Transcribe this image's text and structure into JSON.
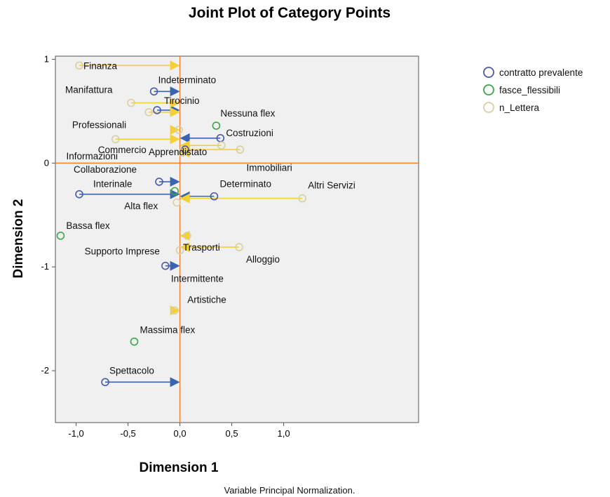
{
  "chart_data": {
    "type": "scatter",
    "title": "Joint Plot of Category Points",
    "xlabel": "Dimension 1",
    "ylabel": "Dimension 2",
    "footnote": "Variable Principal Normalization.",
    "xlim": [
      -1.2,
      2.3
    ],
    "ylim": [
      -2.5,
      1.03
    ],
    "xticks": [
      {
        "v": -1,
        "label": "-1,0"
      },
      {
        "v": -0.5,
        "label": "-0,5"
      },
      {
        "v": 0,
        "label": "0,0"
      },
      {
        "v": 0.5,
        "label": "0,5"
      },
      {
        "v": 1,
        "label": "1,0"
      }
    ],
    "yticks": [
      {
        "v": 1,
        "label": "1"
      },
      {
        "v": 0,
        "label": "0"
      },
      {
        "v": -1,
        "label": "-1"
      },
      {
        "v": -2,
        "label": "-2"
      }
    ],
    "reference_lines": {
      "x": 0,
      "y": 0,
      "color": "#f08030"
    },
    "grid": false,
    "legend_position": "top-right",
    "series": [
      {
        "name": "contratto prevalente",
        "color": "#4a5aa8",
        "arrow_color": "#3a64b0"
      },
      {
        "name": "fasce_flessibili",
        "color": "#3aa84a",
        "arrow_color": "#3aa84a"
      },
      {
        "name": "n_Lettera",
        "color": "#d8d0a0",
        "arrow_color": "#f5d035"
      }
    ],
    "points": [
      {
        "series": 0,
        "label": "Indeterminato",
        "x": -0.25,
        "y": 0.69,
        "px": 0.0,
        "py": 0.69
      },
      {
        "series": 0,
        "label": "Tirocinio",
        "x": -0.22,
        "y": 0.51,
        "px": 0.0,
        "py": 0.51
      },
      {
        "series": 0,
        "label": "Costruzioni",
        "x": 0.39,
        "y": 0.24,
        "px": 0.0,
        "py": 0.24
      },
      {
        "series": 0,
        "label": "Apprendistato",
        "x": 0.05,
        "y": 0.13,
        "px": 0.0,
        "py": 0.13
      },
      {
        "series": 0,
        "label": "Collaborazione",
        "x": -0.2,
        "y": -0.18,
        "px": 0.0,
        "py": -0.18
      },
      {
        "series": 0,
        "label": "Interinale",
        "x": -0.97,
        "y": -0.3,
        "px": 0.0,
        "py": -0.3
      },
      {
        "series": 0,
        "label": "Determinato",
        "x": 0.33,
        "y": -0.32,
        "px": 0.0,
        "py": -0.32
      },
      {
        "series": 0,
        "label": "Intermittente",
        "x": -0.14,
        "y": -0.99,
        "px": 0.0,
        "py": -0.99
      },
      {
        "series": 0,
        "label": "Spettacolo",
        "x": -0.72,
        "y": -2.11,
        "px": 0.0,
        "py": -2.11
      },
      {
        "series": 1,
        "label": "Nessuna flex",
        "x": 0.35,
        "y": 0.36,
        "px": 0.35,
        "py": 0.36
      },
      {
        "series": 1,
        "label": "Alta flex",
        "x": -0.05,
        "y": -0.27,
        "px": -0.05,
        "py": -0.27
      },
      {
        "series": 1,
        "label": "Bassa flex",
        "x": -1.15,
        "y": -0.7,
        "px": -1.15,
        "py": -0.7
      },
      {
        "series": 1,
        "label": "Massima flex",
        "x": -0.44,
        "y": -1.72,
        "px": -0.44,
        "py": -1.72
      },
      {
        "series": 2,
        "label": "Finanza",
        "x": -0.97,
        "y": 0.94,
        "px": 0.0,
        "py": 0.94
      },
      {
        "series": 2,
        "label": "Manifattura",
        "x": -0.47,
        "y": 0.58,
        "px": 0.0,
        "py": 0.58
      },
      {
        "series": 2,
        "label": "",
        "x": -0.3,
        "y": 0.49,
        "px": 0.0,
        "py": 0.49
      },
      {
        "series": 2,
        "label": "Professionali",
        "x": -0.62,
        "y": 0.23,
        "px": 0.0,
        "py": 0.23
      },
      {
        "series": 2,
        "label": "",
        "x": -0.01,
        "y": 0.32,
        "px": 0.0,
        "py": 0.32
      },
      {
        "series": 2,
        "label": "Commercio",
        "x": 0.4,
        "y": 0.17,
        "px": 0.0,
        "py": 0.17
      },
      {
        "series": 2,
        "label": "Informazioni",
        "x": 0.58,
        "y": 0.13,
        "px": 0.0,
        "py": 0.13
      },
      {
        "series": 2,
        "label": "Immobiliari",
        "x": 0.02,
        "y": 0.1,
        "px": 0.0,
        "py": 0.1
      },
      {
        "series": 2,
        "label": "Altri Servizi",
        "x": 1.18,
        "y": -0.34,
        "px": 0.0,
        "py": -0.34
      },
      {
        "series": 2,
        "label": "Trasporti",
        "x": 0.07,
        "y": -0.7,
        "px": 0.0,
        "py": -0.7
      },
      {
        "series": 2,
        "label": "Alloggio",
        "x": 0.57,
        "y": -0.81,
        "px": 0.0,
        "py": -0.81
      },
      {
        "series": 2,
        "label": "Supporto Imprese",
        "x": 0.0,
        "y": -0.84,
        "px": 0.0,
        "py": -0.84
      },
      {
        "series": 2,
        "label": "",
        "x": -0.03,
        "y": -0.38,
        "px": -0.03,
        "py": -0.38
      },
      {
        "series": 2,
        "label": "Artistiche",
        "x": -0.05,
        "y": -1.42,
        "px": 0.0,
        "py": -1.42
      }
    ]
  }
}
